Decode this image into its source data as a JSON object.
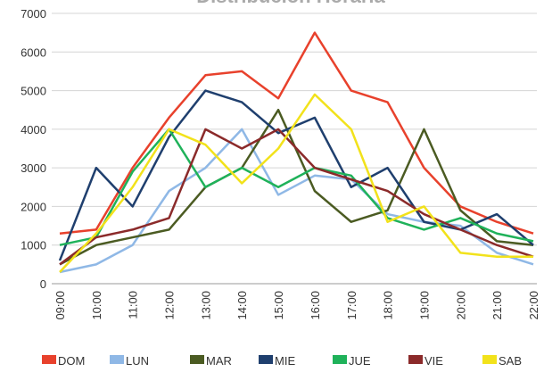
{
  "chart_data": {
    "type": "line",
    "title": "Distribución Horaria",
    "categories": [
      "09:00",
      "10:00",
      "11:00",
      "12:00",
      "13:00",
      "14:00",
      "15:00",
      "16:00",
      "17:00",
      "18:00",
      "19:00",
      "20:00",
      "21:00",
      "22:00"
    ],
    "series": [
      {
        "name": "DOM",
        "color": "#e8412c",
        "values": [
          1300,
          1400,
          3000,
          4300,
          5400,
          5500,
          4800,
          6500,
          5000,
          4700,
          3000,
          2000,
          1600,
          1300
        ]
      },
      {
        "name": "LUN",
        "color": "#8fb8e6",
        "values": [
          300,
          500,
          1000,
          2400,
          3000,
          4000,
          2300,
          2800,
          2700,
          1800,
          1600,
          1500,
          800,
          500
        ]
      },
      {
        "name": "MAR",
        "color": "#4b5b22",
        "values": [
          500,
          1000,
          1200,
          1400,
          2500,
          3000,
          4500,
          2400,
          1600,
          1900,
          4000,
          1900,
          1100,
          1000
        ]
      },
      {
        "name": "MIE",
        "color": "#1f3f6e",
        "values": [
          600,
          3000,
          2000,
          3800,
          5000,
          4700,
          3900,
          4300,
          2500,
          3000,
          1600,
          1400,
          1800,
          1000
        ]
      },
      {
        "name": "JUE",
        "color": "#1fb25a",
        "values": [
          1000,
          1200,
          2900,
          4000,
          2500,
          3000,
          2500,
          3000,
          2800,
          1700,
          1400,
          1700,
          1300,
          1100
        ]
      },
      {
        "name": "VIE",
        "color": "#8b2a2a",
        "values": [
          500,
          1200,
          1400,
          1700,
          4000,
          3500,
          4000,
          3000,
          2700,
          2400,
          1800,
          1400,
          1000,
          700
        ]
      },
      {
        "name": "SAB",
        "color": "#f2e21b",
        "values": [
          300,
          1300,
          2500,
          4000,
          3600,
          2600,
          3500,
          4900,
          4000,
          1600,
          2000,
          800,
          700,
          700
        ]
      }
    ],
    "ylim": [
      0,
      7000
    ],
    "yticks": [
      0,
      1000,
      2000,
      3000,
      4000,
      5000,
      6000,
      7000
    ],
    "grid": true
  }
}
